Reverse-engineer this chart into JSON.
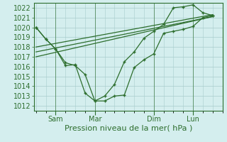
{
  "background_color": "#d4eeee",
  "grid_color": "#a8cccc",
  "line_color": "#2d6e2d",
  "axis_color": "#2d6e2d",
  "xlabel_text": "Pression niveau de la mer( hPa )",
  "xtick_labels": [
    "Sam",
    "Mar",
    "Dim",
    "Lun"
  ],
  "xtick_positions": [
    1,
    3,
    6,
    8
  ],
  "ylim": [
    1011.5,
    1022.5
  ],
  "yticks": [
    1012,
    1013,
    1014,
    1015,
    1016,
    1017,
    1018,
    1019,
    1020,
    1021,
    1022
  ],
  "xlim": [
    -0.1,
    9.5
  ],
  "fontsize_label": 8,
  "fontsize_tick": 7,
  "marker_size": 3.5,
  "main_line_x": [
    0,
    0.5,
    1.0,
    1.5,
    2.0,
    2.5,
    3.0,
    3.5,
    4.0,
    4.5,
    5.0,
    5.5,
    6.0,
    6.5,
    7.0,
    7.5,
    8.0,
    8.5,
    9.0
  ],
  "main_line_y": [
    1020.0,
    1018.8,
    1017.8,
    1016.4,
    1016.1,
    1015.2,
    1012.5,
    1012.5,
    1013.0,
    1013.1,
    1015.9,
    1016.7,
    1017.3,
    1019.4,
    1019.6,
    1019.8,
    1020.1,
    1021.0,
    1021.2
  ],
  "band_line1_x": [
    0,
    9.0
  ],
  "band_line1_y": [
    1018.0,
    1021.3
  ],
  "band_line2_x": [
    0,
    9.0
  ],
  "band_line2_y": [
    1017.5,
    1021.1
  ],
  "band_line3_x": [
    0,
    9.0
  ],
  "band_line3_y": [
    1017.0,
    1021.1
  ],
  "spike_line_x": [
    0,
    0.5,
    1.0,
    1.5,
    2.0,
    2.5,
    3.0,
    3.5,
    4.0,
    4.5,
    5.0,
    5.5,
    6.0,
    6.5,
    7.0,
    7.5,
    8.0,
    8.5,
    9.0
  ],
  "spike_line_y": [
    1020.0,
    1018.8,
    1017.8,
    1016.1,
    1016.2,
    1013.3,
    1012.5,
    1013.0,
    1014.2,
    1016.5,
    1017.5,
    1018.9,
    1019.6,
    1020.3,
    1022.0,
    1022.1,
    1022.3,
    1021.5,
    1021.2
  ]
}
